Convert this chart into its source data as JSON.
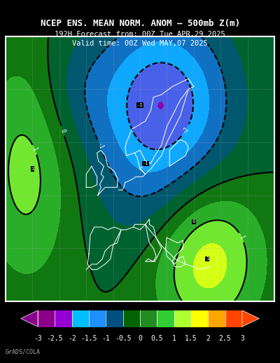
{
  "title_line1": "NCEP ENS. MEAN NORM. ANOM – 500mb Z(m)",
  "title_line2": "192H Forecast from: 00Z Tue APR,29 2025",
  "title_line3": "Valid time: 00Z Wed MAY,07 2025",
  "colorbar_levels": [
    -3,
    -2.5,
    -2,
    -1.5,
    -1,
    -0.5,
    0,
    0.5,
    1,
    1.5,
    2,
    2.5,
    3
  ],
  "colorbar_colors": [
    "#c800c8",
    "#9400d3",
    "#7b2fbe",
    "#00bfff",
    "#1e90ff",
    "#0000cd",
    "#006400",
    "#228b22",
    "#32cd32",
    "#adff2f",
    "#ffff00",
    "#ffa500",
    "#ff4500",
    "#ff0000"
  ],
  "background_color": "#000000",
  "map_bg": "#000000",
  "figure_width": 4.0,
  "figure_height": 5.18,
  "dpi": 100,
  "colorbar_label_color": "#ffffff",
  "title_color": "#ffffff",
  "watermark": "GrADS/COLA"
}
